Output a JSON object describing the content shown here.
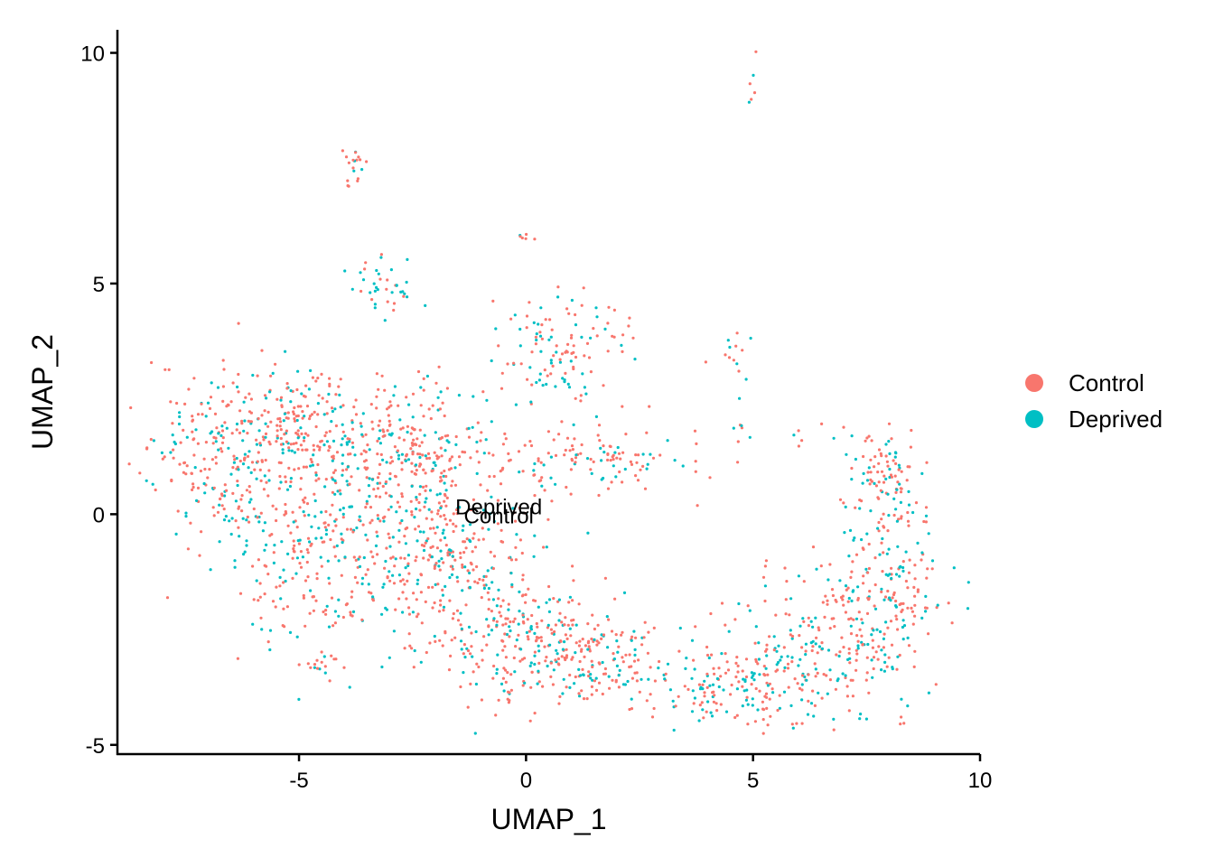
{
  "chart_data": {
    "type": "scatter",
    "title": "",
    "xlabel": "UMAP_1",
    "ylabel": "UMAP_2",
    "xlim": [
      -9,
      10
    ],
    "ylim": [
      -5.2,
      10.5
    ],
    "x_ticks": [
      -5,
      0,
      5,
      10
    ],
    "y_ticks": [
      -5,
      0,
      5,
      10
    ],
    "x_tick_labels": [
      "-5",
      "0",
      "5",
      "10"
    ],
    "y_tick_labels": [
      "-5",
      "0",
      "5",
      "10"
    ],
    "grid": false,
    "legend_position": "right",
    "series": [
      {
        "name": "Control",
        "color": "#F8766D"
      },
      {
        "name": "Deprived",
        "color": "#00BFC4"
      }
    ],
    "clusters": [
      {
        "x": -6.8,
        "y": 1.2,
        "sx": 0.8,
        "sy": 0.9,
        "w": 10,
        "control": 0.65
      },
      {
        "x": -5.0,
        "y": 2.0,
        "sx": 0.9,
        "sy": 0.6,
        "w": 10,
        "control": 0.72
      },
      {
        "x": -4.8,
        "y": -0.4,
        "sx": 1.0,
        "sy": 1.1,
        "w": 14,
        "control": 0.62
      },
      {
        "x": -2.6,
        "y": 1.3,
        "sx": 1.0,
        "sy": 0.8,
        "w": 14,
        "control": 0.7
      },
      {
        "x": -2.0,
        "y": -0.8,
        "sx": 1.1,
        "sy": 1.0,
        "w": 16,
        "control": 0.64
      },
      {
        "x": -0.3,
        "y": -2.6,
        "sx": 1.1,
        "sy": 0.8,
        "w": 12,
        "control": 0.7
      },
      {
        "x": 1.5,
        "y": -3.2,
        "sx": 0.9,
        "sy": 0.5,
        "w": 8,
        "control": 0.7
      },
      {
        "x": 0.8,
        "y": 3.5,
        "sx": 0.7,
        "sy": 0.6,
        "w": 6,
        "control": 0.55
      },
      {
        "x": 1.5,
        "y": 1.2,
        "sx": 1.2,
        "sy": 0.4,
        "w": 6,
        "control": 0.7
      },
      {
        "x": 4.6,
        "y": -3.8,
        "sx": 1.0,
        "sy": 0.4,
        "w": 8,
        "control": 0.55
      },
      {
        "x": 6.8,
        "y": -2.8,
        "sx": 1.2,
        "sy": 0.8,
        "w": 12,
        "control": 0.62
      },
      {
        "x": 8.0,
        "y": -1.2,
        "sx": 0.6,
        "sy": 1.0,
        "w": 8,
        "control": 0.55
      },
      {
        "x": 7.9,
        "y": 0.8,
        "sx": 0.5,
        "sy": 0.4,
        "w": 4,
        "control": 0.6
      },
      {
        "x": -3.2,
        "y": 5.0,
        "sx": 0.35,
        "sy": 0.35,
        "w": 2,
        "control": 0.25
      },
      {
        "x": -3.8,
        "y": 7.5,
        "sx": 0.12,
        "sy": 0.25,
        "w": 1,
        "control": 0.65
      },
      {
        "x": 5.0,
        "y": 9.3,
        "sx": 0.1,
        "sy": 0.3,
        "w": 0.3,
        "control": 0.7
      },
      {
        "x": 0.0,
        "y": 6.0,
        "sx": 0.08,
        "sy": 0.05,
        "w": 0.1,
        "control": 0.9
      },
      {
        "x": -4.6,
        "y": -3.3,
        "sx": 0.25,
        "sy": 0.2,
        "w": 0.8,
        "control": 0.6
      },
      {
        "x": 4.5,
        "y": 3.6,
        "sx": 0.25,
        "sy": 0.25,
        "w": 0.6,
        "control": 0.4
      },
      {
        "x": 4.8,
        "y": 2.2,
        "sx": 0.15,
        "sy": 0.5,
        "w": 0.4,
        "control": 0.5
      },
      {
        "x": 6.5,
        "y": 1.7,
        "sx": 0.8,
        "sy": 0.12,
        "w": 0.6,
        "control": 0.6
      }
    ],
    "annotations": [
      {
        "text": "Deprived",
        "x": -0.6,
        "y": 0.0
      },
      {
        "text": "Control",
        "x": -0.6,
        "y": -0.2
      }
    ]
  }
}
